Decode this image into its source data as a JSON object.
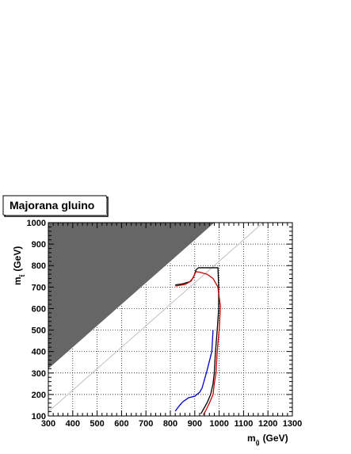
{
  "chart_data": {
    "type": "line",
    "title": "Majorana gluino",
    "xlabel": {
      "main": "m",
      "sub": "g̃",
      "unit": "(GeV)"
    },
    "ylabel": {
      "main": "m",
      "sub": "t̃",
      "unit": "(GeV)"
    },
    "xlim": [
      300,
      1300
    ],
    "ylim": [
      100,
      1000
    ],
    "xticks": [
      300,
      400,
      500,
      600,
      700,
      800,
      900,
      1000,
      1100,
      1200,
      1300
    ],
    "yticks": [
      100,
      200,
      300,
      400,
      500,
      600,
      700,
      800,
      900,
      1000
    ],
    "grid": true,
    "excluded_region": {
      "color": "#666666",
      "polygon": [
        [
          300,
          1000
        ],
        [
          300,
          320
        ],
        [
          980,
          1000
        ]
      ]
    },
    "diagonal": {
      "color": "#c0c0c0",
      "points": [
        [
          300,
          120
        ],
        [
          1180,
          1000
        ]
      ]
    },
    "series": [
      {
        "color": "#000000",
        "points": [
          [
            820,
            710
          ],
          [
            850,
            715
          ],
          [
            880,
            725
          ],
          [
            895,
            745
          ],
          [
            905,
            780
          ],
          [
            915,
            790
          ],
          [
            995,
            790
          ],
          [
            998,
            700
          ],
          [
            998,
            600
          ],
          [
            992,
            500
          ],
          [
            985,
            400
          ],
          [
            980,
            300
          ],
          [
            975,
            250
          ],
          [
            965,
            200
          ],
          [
            950,
            160
          ],
          [
            935,
            130
          ],
          [
            925,
            110
          ]
        ]
      },
      {
        "color": "#0000cc",
        "points": [
          [
            975,
            500
          ],
          [
            970,
            400
          ],
          [
            950,
            310
          ],
          [
            930,
            230
          ],
          [
            920,
            210
          ],
          [
            900,
            192
          ],
          [
            875,
            185
          ],
          [
            850,
            165
          ],
          [
            835,
            145
          ],
          [
            820,
            122
          ]
        ]
      },
      {
        "color": "#cc0000",
        "points": [
          [
            820,
            705
          ],
          [
            860,
            712
          ],
          [
            885,
            728
          ],
          [
            898,
            755
          ],
          [
            905,
            772
          ],
          [
            925,
            768
          ],
          [
            950,
            760
          ],
          [
            975,
            740
          ],
          [
            995,
            700
          ],
          [
            1005,
            610
          ],
          [
            1000,
            500
          ],
          [
            992,
            400
          ],
          [
            987,
            300
          ],
          [
            980,
            250
          ],
          [
            975,
            200
          ],
          [
            960,
            160
          ],
          [
            945,
            125
          ],
          [
            935,
            105
          ]
        ]
      }
    ]
  }
}
